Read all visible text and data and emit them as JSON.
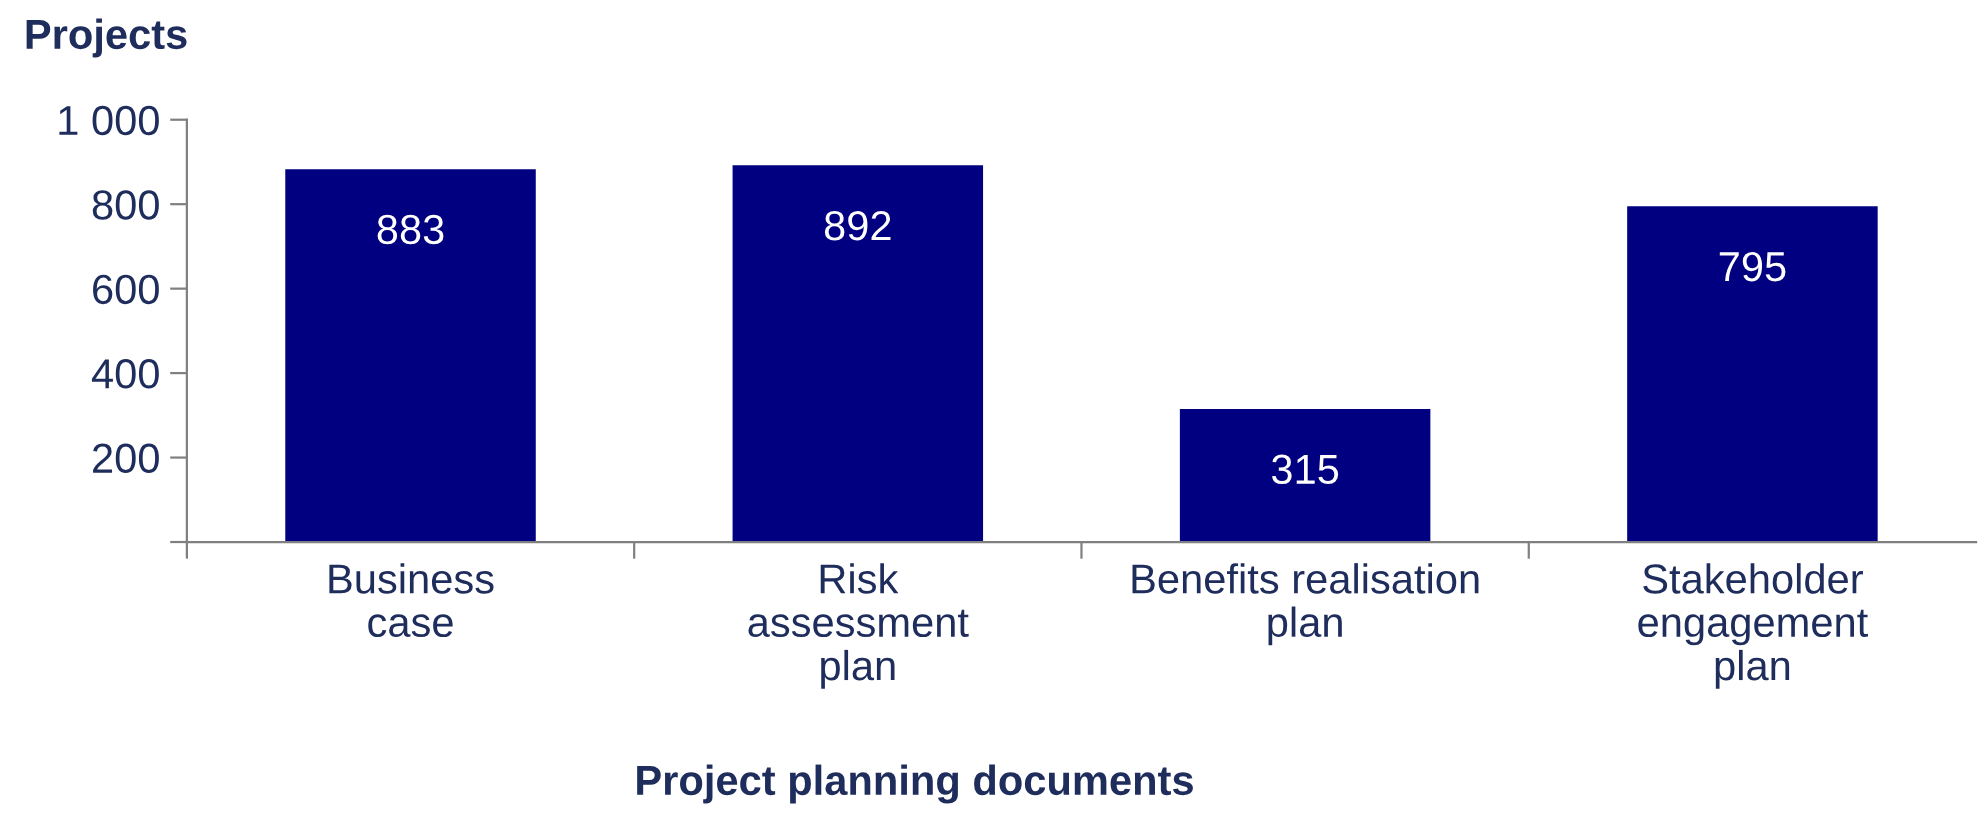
{
  "chart_data": {
    "type": "bar",
    "ylabel": "Projects",
    "xlabel": "Project planning documents",
    "categories": [
      "Business\ncase",
      "Risk\nassessment\nplan",
      "Benefits realisation\nplan",
      "Stakeholder\nengagement\nplan"
    ],
    "values": [
      883,
      892,
      315,
      795
    ],
    "color": "#000080",
    "ylim": [
      0,
      1000
    ],
    "yticks": [
      {
        "value": 0,
        "label": null
      },
      200,
      400,
      600,
      800,
      {
        "value": 1000,
        "label": "1 000"
      }
    ],
    "data_labels": true,
    "grid": false,
    "legend": false
  }
}
